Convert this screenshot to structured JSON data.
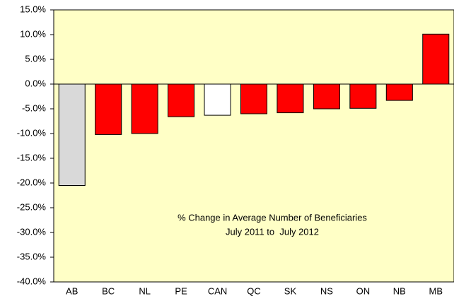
{
  "chart_data": {
    "type": "bar",
    "categories": [
      "AB",
      "BC",
      "NL",
      "PE",
      "CAN",
      "QC",
      "SK",
      "NS",
      "ON",
      "NB",
      "MB"
    ],
    "values": [
      -20.5,
      -10.2,
      -10.0,
      -6.6,
      -6.3,
      -6.0,
      -5.8,
      -5.0,
      -4.9,
      -3.3,
      10.1
    ],
    "colors": [
      "#d9d9d9",
      "#ff0000",
      "#ff0000",
      "#ff0000",
      "#ffffff",
      "#ff0000",
      "#ff0000",
      "#ff0000",
      "#ff0000",
      "#ff0000",
      "#ff0000"
    ],
    "annotations": [
      "% Change in Average Number of Beneficiaries",
      "July 2011 to  July 2012"
    ],
    "ylim": [
      -40,
      15
    ],
    "yticks": [
      {
        "value": 15,
        "label": "15.0%"
      },
      {
        "value": 10,
        "label": "10.0%"
      },
      {
        "value": 5,
        "label": "5.0%"
      },
      {
        "value": 0,
        "label": "0.0%"
      },
      {
        "value": -5,
        "label": "-5.0%"
      },
      {
        "value": -10,
        "label": "-10.0%"
      },
      {
        "value": -15,
        "label": "-15.0%"
      },
      {
        "value": -20,
        "label": "-20.0%"
      },
      {
        "value": -25,
        "label": "-25.0%"
      },
      {
        "value": -30,
        "label": "-30.0%"
      },
      {
        "value": -35,
        "label": "-35.0%"
      },
      {
        "value": -40,
        "label": "-40.0%"
      }
    ],
    "plot_background": "#ffffc6"
  }
}
